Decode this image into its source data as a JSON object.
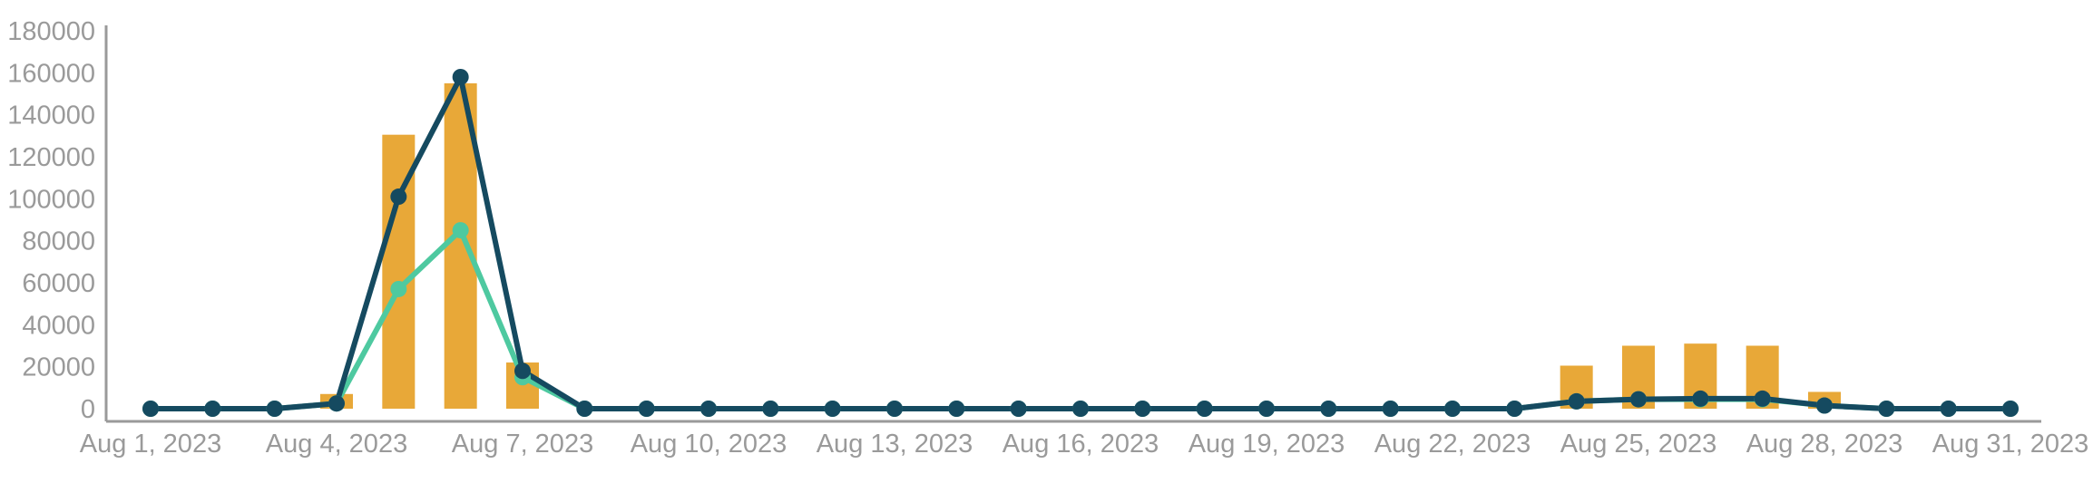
{
  "chart_data": {
    "type": "bar",
    "title": "",
    "xlabel": "",
    "ylabel": "",
    "ylim": [
      0,
      180000
    ],
    "yticks": [
      "0",
      "20000",
      "40000",
      "60000",
      "80000",
      "100000",
      "120000",
      "140000",
      "160000",
      "180000"
    ],
    "grid": false,
    "legend": "none",
    "categories": [
      "Aug 1, 2023",
      "Aug 2, 2023",
      "Aug 3, 2023",
      "Aug 4, 2023",
      "Aug 5, 2023",
      "Aug 6, 2023",
      "Aug 7, 2023",
      "Aug 8, 2023",
      "Aug 9, 2023",
      "Aug 10, 2023",
      "Aug 11, 2023",
      "Aug 12, 2023",
      "Aug 13, 2023",
      "Aug 14, 2023",
      "Aug 15, 2023",
      "Aug 16, 2023",
      "Aug 17, 2023",
      "Aug 18, 2023",
      "Aug 19, 2023",
      "Aug 20, 2023",
      "Aug 21, 2023",
      "Aug 22, 2023",
      "Aug 23, 2023",
      "Aug 24, 2023",
      "Aug 25, 2023",
      "Aug 26, 2023",
      "Aug 27, 2023",
      "Aug 28, 2023",
      "Aug 29, 2023",
      "Aug 30, 2023",
      "Aug 31, 2023"
    ],
    "xtick_labels": [
      "Aug 1, 2023",
      "Aug 4, 2023",
      "Aug 7, 2023",
      "Aug 10, 2023",
      "Aug 13, 2023",
      "Aug 16, 2023",
      "Aug 19, 2023",
      "Aug 22, 2023",
      "Aug 25, 2023",
      "Aug 28, 2023",
      "Aug 31, 2023"
    ],
    "series": [
      {
        "type": "bar",
        "color": "#e8a838",
        "values": [
          0,
          0,
          0,
          7000,
          130500,
          155000,
          22000,
          0,
          0,
          0,
          0,
          0,
          0,
          0,
          0,
          0,
          0,
          0,
          0,
          0,
          0,
          0,
          0,
          20500,
          30000,
          31000,
          30000,
          8000,
          0,
          0,
          0
        ]
      },
      {
        "type": "line",
        "color": "#4ec9a0",
        "values": [
          0,
          0,
          0,
          2500,
          57000,
          85000,
          15000,
          0,
          0,
          0,
          0,
          0,
          0,
          0,
          0,
          0,
          0,
          0,
          0,
          0,
          0,
          0,
          0,
          3500,
          4500,
          4500,
          4500,
          1500,
          0,
          0,
          0
        ]
      },
      {
        "type": "line",
        "color": "#154a60",
        "values": [
          0,
          0,
          0,
          2500,
          101000,
          158000,
          18000,
          0,
          0,
          0,
          0,
          0,
          0,
          0,
          0,
          0,
          0,
          0,
          0,
          0,
          0,
          0,
          0,
          3500,
          4500,
          4800,
          4800,
          1500,
          0,
          0,
          0
        ]
      }
    ]
  }
}
